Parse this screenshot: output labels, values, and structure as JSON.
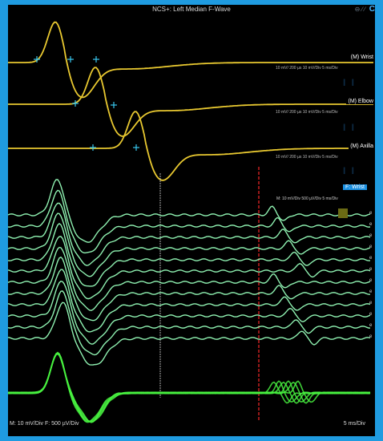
{
  "window": {
    "title": "NCS+: Left Median F-Wave",
    "icons": [
      "pin-icon",
      "edit-icon",
      "edit-icon"
    ],
    "side_glyph": "C"
  },
  "traces": [
    {
      "label": "(M) Wrist",
      "scale": "10 mV/ 200 µs 10 mV/Div  5 ms/Div"
    },
    {
      "label": "(M) Elbow",
      "scale": "10 mV/ 200 µs 10 mV/Div  5 ms/Div"
    },
    {
      "label": "(M) Axilla",
      "scale": "10 mV/ 200 µs 10 mV/Div  5 ms/Div"
    }
  ],
  "fwave": {
    "tag": "F: Wrist",
    "scale": "M: 10 mV/Div 500 µV/Div  5 ms/Div",
    "edge_letters": [
      "e",
      "e",
      "e",
      "e",
      "e",
      "e",
      "e",
      "e",
      "e",
      "e",
      "e",
      "e"
    ]
  },
  "bottom": {
    "left": "M: 10 mV/Div  F: 500 µV/Div",
    "right": "5 ms/Div"
  },
  "colors": {
    "motor": "#e8c830",
    "fwave": "#8ef0b0",
    "superimposed": "#48f040",
    "marker": "#38c8f0",
    "latency_line": "#c82020",
    "frame": "#1f9be0"
  }
}
